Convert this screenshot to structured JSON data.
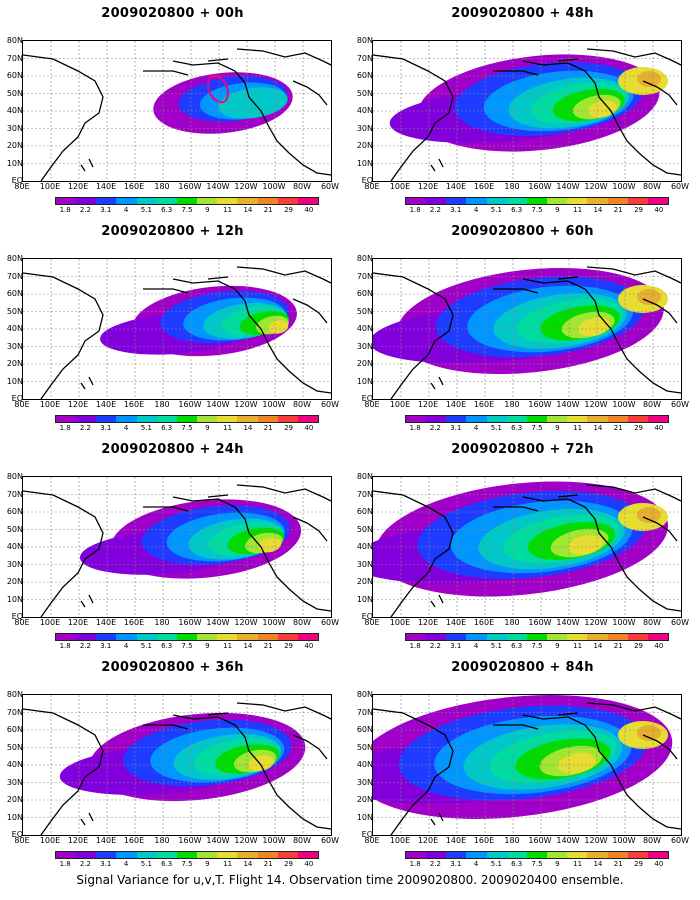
{
  "panels": [
    {
      "title": "2009020800 + 00h",
      "hour": 0
    },
    {
      "title": "2009020800 + 48h",
      "hour": 48
    },
    {
      "title": "2009020800 + 12h",
      "hour": 12
    },
    {
      "title": "2009020800 + 60h",
      "hour": 60
    },
    {
      "title": "2009020800 + 24h",
      "hour": 24
    },
    {
      "title": "2009020800 + 72h",
      "hour": 72
    },
    {
      "title": "2009020800 + 36h",
      "hour": 36
    },
    {
      "title": "2009020800 + 84h",
      "hour": 84
    }
  ],
  "lat_labels": [
    "80N",
    "70N",
    "60N",
    "50N",
    "40N",
    "30N",
    "20N",
    "10N",
    "EQ"
  ],
  "lon_labels": [
    "80E",
    "100E",
    "120E",
    "140E",
    "160E",
    "180",
    "160W",
    "140W",
    "120W",
    "100W",
    "80W",
    "60W"
  ],
  "colorbar": {
    "labels": [
      "1.8",
      "2.2",
      "3.1",
      "4",
      "5.1",
      "6.3",
      "7.5",
      "9",
      "11",
      "14",
      "21",
      "29",
      "40"
    ],
    "colors": [
      "#a000c8",
      "#8200dc",
      "#1e3cff",
      "#0096ff",
      "#00c8c8",
      "#00dca0",
      "#00dc00",
      "#a0e632",
      "#e6dc32",
      "#e6af2d",
      "#f08228",
      "#fa3c3c",
      "#f00082"
    ]
  },
  "footer": "Signal Variance for u,v,T. Flight 14. Observation time 2009020800. 2009020400 ensemble."
}
